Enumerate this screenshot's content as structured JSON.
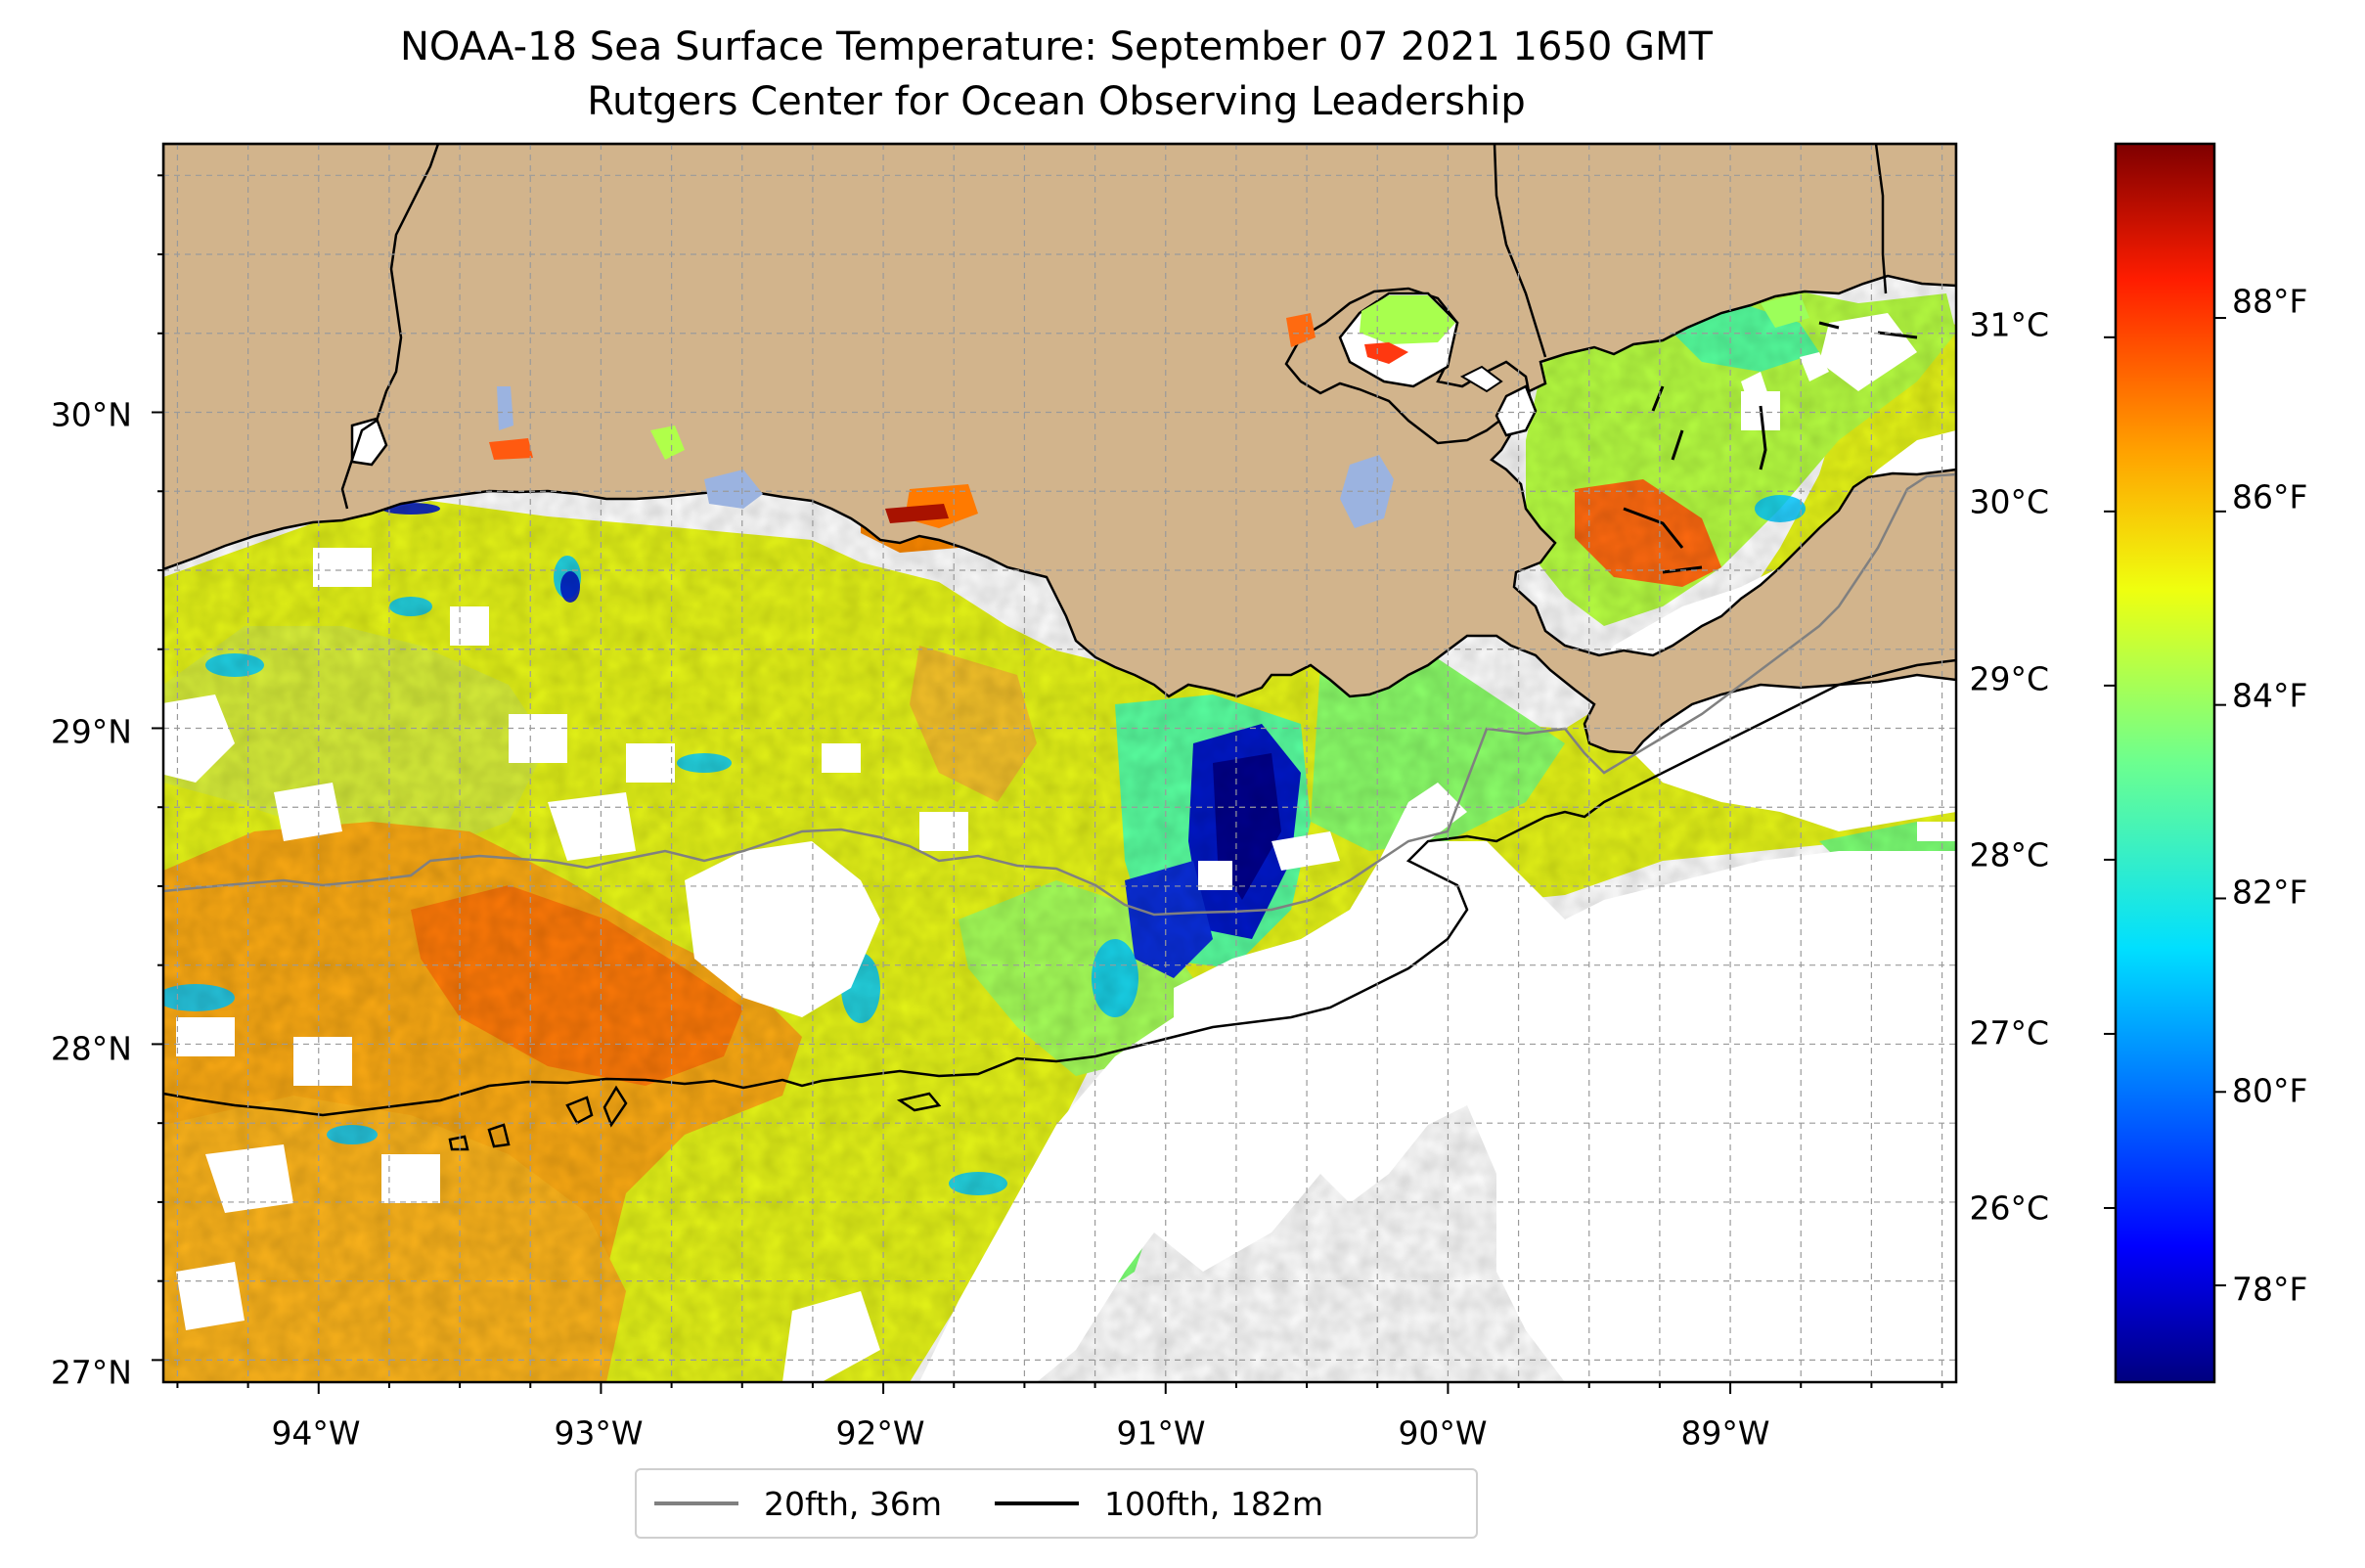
{
  "title": {
    "line1": "NOAA-18 Sea Surface Temperature: September 07 2021 1650 GMT",
    "line2": "Rutgers Center for Ocean Observing Leadership"
  },
  "map": {
    "lon_range": [
      -94.55,
      -88.2
    ],
    "lat_range": [
      26.93,
      30.85
    ],
    "lat_labels": [
      "27°N",
      "28°N",
      "29°N",
      "30°N"
    ],
    "lon_labels": [
      "94°W",
      "93°W",
      "92°W",
      "91°W",
      "90°W",
      "89°W"
    ],
    "land_color": "#d2b48c",
    "gridlines": "dashed gray"
  },
  "colorbar": {
    "colormap": "jet",
    "celsius_labels": [
      "26°C",
      "27°C",
      "28°C",
      "29°C",
      "30°C",
      "31°C"
    ],
    "fahrenheit_labels": [
      "78°F",
      "80°F",
      "82°F",
      "84°F",
      "86°F",
      "88°F"
    ],
    "range_f": [
      77,
      89.8
    ]
  },
  "legend": {
    "items": [
      {
        "label": "20fth, 36m",
        "color": "#808080"
      },
      {
        "label": "100fth, 182m",
        "color": "#000000"
      }
    ]
  }
}
